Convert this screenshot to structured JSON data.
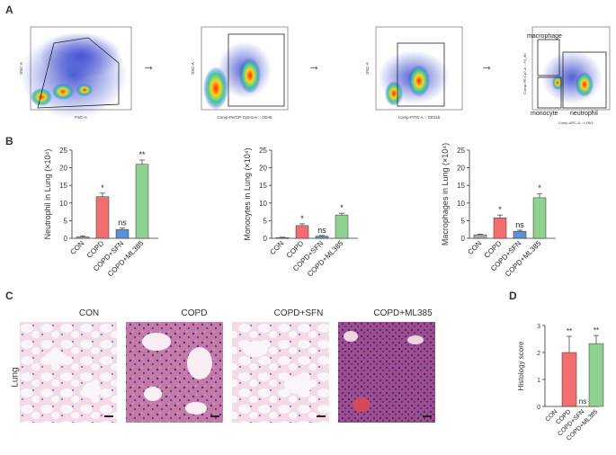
{
  "panels": {
    "a": "A",
    "b": "B",
    "c": "C",
    "d": "D"
  },
  "flow": [
    {
      "xaxis": "FSC-A",
      "yaxis": "SSC-A"
    },
    {
      "xaxis": "Comp-PerCP-Cy5-5-A :: CD45",
      "yaxis": "SSC-A"
    },
    {
      "xaxis": "Comp-FITC-A :: CD11b",
      "yaxis": "SSC-A"
    },
    {
      "xaxis": "Comp-APC-A :: LY6G",
      "yaxis": "Comp-PE-Cy7-A :: F4_80",
      "gate_labels": {
        "macrophage": "macrophage",
        "monocyte": "monocyte",
        "neutrophil": "neutrophil"
      }
    }
  ],
  "arrow_glyph": "→",
  "histology": {
    "row_label": "Lung",
    "titles": [
      "CON",
      "COPD",
      "COPD+SFN",
      "COPD+ML385"
    ],
    "scale": "50μm"
  },
  "colors": {
    "CON": "#a9a9a9",
    "COPD": "#f26d6d",
    "COPD+SFN": "#5b8fd6",
    "COPD+ML385": "#8fd18f"
  },
  "chart_data": [
    {
      "type": "bar",
      "categories": [
        "CON",
        "COPD",
        "COPD+SFN",
        "COPD+ML385"
      ],
      "values": [
        0.4,
        11.8,
        2.5,
        21.0
      ],
      "errors": [
        0.3,
        1.0,
        0.4,
        1.2
      ],
      "annotations": [
        "",
        "*",
        "ns",
        "**"
      ],
      "ylabel": "Neutrophil in Lung (×10⁴)",
      "ylim": [
        0,
        25
      ],
      "yticks": [
        "0",
        "5",
        "10",
        "15",
        "20",
        "25"
      ]
    },
    {
      "type": "bar",
      "categories": [
        "CON",
        "COPD",
        "COPD+SFN",
        "COPD+ML385"
      ],
      "values": [
        0.2,
        3.6,
        0.6,
        6.6
      ],
      "errors": [
        0.1,
        0.5,
        0.2,
        0.5
      ],
      "annotations": [
        "",
        "*",
        "ns",
        "*"
      ],
      "ylabel": "Monocytes in Lung (×10⁴)",
      "ylim": [
        0,
        25
      ],
      "yticks": [
        "0",
        "5",
        "10",
        "15",
        "20",
        "25"
      ]
    },
    {
      "type": "bar",
      "categories": [
        "CON",
        "COPD",
        "COPD+SFN",
        "COPD+ML385"
      ],
      "values": [
        1.0,
        5.8,
        2.0,
        11.5
      ],
      "errors": [
        0.2,
        0.8,
        0.3,
        1.2
      ],
      "annotations": [
        "",
        "*",
        "ns",
        "*"
      ],
      "ylabel": "Macrophages in Lung (×10⁴)",
      "ylim": [
        0,
        25
      ],
      "yticks": [
        "0",
        "5",
        "10",
        "15",
        "20",
        "25"
      ]
    },
    {
      "type": "bar",
      "categories": [
        "CON",
        "COPD",
        "COPD+SFN",
        "COPD+ML385"
      ],
      "values": [
        0,
        2.0,
        0,
        2.33
      ],
      "errors": [
        0,
        0.6,
        0,
        0.3
      ],
      "annotations": [
        "",
        "**",
        "ns",
        "**"
      ],
      "ylabel": "Histology score",
      "ylim": [
        0,
        3
      ],
      "yticks": [
        "0",
        "1",
        "2",
        "3"
      ]
    }
  ]
}
